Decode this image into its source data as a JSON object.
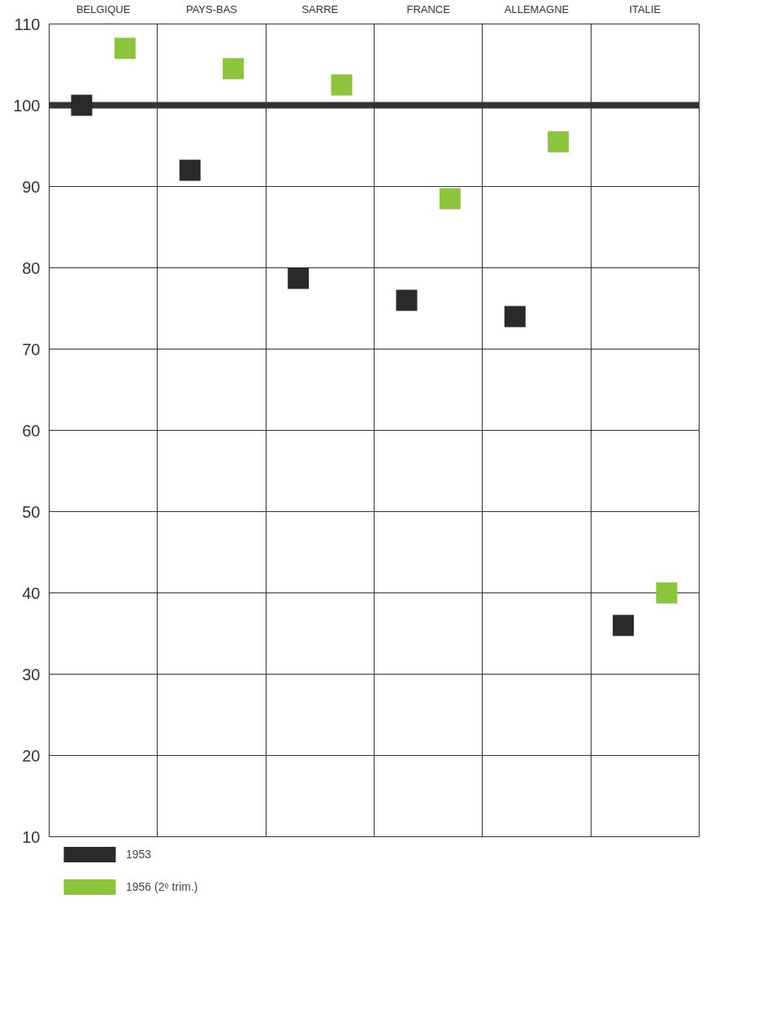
{
  "chart_data": {
    "type": "scatter",
    "marker": "square",
    "categories": [
      "BELGIQUE",
      "PAYS-BAS",
      "SARRE",
      "FRANCE",
      "ALLEMAGNE",
      "ITALIE"
    ],
    "series": [
      {
        "name": "1953",
        "color": "#2a2a2a",
        "values": [
          100,
          92,
          78.7,
          76,
          74,
          36
        ]
      },
      {
        "name": "1956 (2ᵉ trim.)",
        "color": "#8cc43c",
        "values": [
          107,
          104.5,
          102.5,
          88.5,
          95.5,
          40
        ]
      }
    ],
    "ylim": [
      10,
      110
    ],
    "yticks": [
      10,
      20,
      30,
      40,
      50,
      60,
      70,
      80,
      90,
      100,
      110
    ],
    "grid": true,
    "legend": "bottom",
    "ref_lines": [
      {
        "axis": "y",
        "value": 100,
        "color": "#333333"
      }
    ]
  }
}
